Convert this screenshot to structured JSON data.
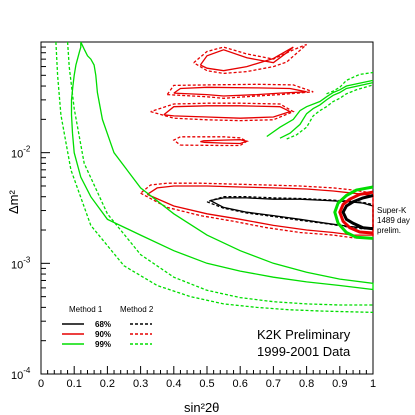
{
  "chart_data": {
    "type": "contour",
    "xlabel": "sin²2θ",
    "ylabel": "Δm²",
    "xlim": [
      0,
      1
    ],
    "ylim": [
      0.0001,
      0.1
    ],
    "y_scale": "log",
    "x_ticks": [
      "0",
      "0.1",
      "0.2",
      "0.3",
      "0.4",
      "0.5",
      "0.6",
      "0.7",
      "0.8",
      "0.9",
      "1"
    ],
    "y_ticks": [
      {
        "value": 0.0001,
        "base": "10",
        "exp": "-4"
      },
      {
        "value": 0.001,
        "base": "10",
        "exp": "-3"
      },
      {
        "value": 0.01,
        "base": "10",
        "exp": "-2"
      }
    ],
    "legend": {
      "method1_label": "Method 1",
      "method2_label": "Method 2",
      "levels": [
        {
          "label": "68%",
          "color": "#000000"
        },
        {
          "label": "90%",
          "color": "#e60000"
        },
        {
          "label": "99%",
          "color": "#00dd00"
        }
      ]
    },
    "annotation_lines": [
      "K2K Preliminary",
      "1999-2001 Data"
    ],
    "superk_lines": [
      "Super-K",
      "1489 day",
      "prelim."
    ],
    "colors": {
      "c68": "#000000",
      "c90": "#e60000",
      "c99": "#00dd00"
    },
    "series": [
      {
        "level": "68%",
        "method": 1,
        "x": [
          0.51,
          0.55,
          0.62,
          0.7,
          0.78,
          0.86,
          0.93,
          0.97,
          1.0,
          1.0,
          0.97,
          0.93,
          0.86,
          0.78,
          0.7,
          0.62,
          0.55,
          0.51
        ],
        "y": [
          0.0037,
          0.0032,
          0.0029,
          0.0027,
          0.0025,
          0.0023,
          0.00215,
          0.0021,
          0.0021,
          0.0033,
          0.0035,
          0.0036,
          0.0037,
          0.0038,
          0.0038,
          0.0039,
          0.0039,
          0.0037
        ]
      },
      {
        "level": "68%",
        "method": 2,
        "x": [
          0.5,
          0.55,
          0.62,
          0.7,
          0.78,
          0.86,
          0.93,
          0.97,
          1.0,
          1.0,
          0.97,
          0.93,
          0.86,
          0.78,
          0.7,
          0.62,
          0.55,
          0.5
        ],
        "y": [
          0.0036,
          0.00315,
          0.00285,
          0.00265,
          0.00245,
          0.00228,
          0.00212,
          0.00205,
          0.00205,
          0.0034,
          0.00355,
          0.00365,
          0.00375,
          0.00385,
          0.0039,
          0.004,
          0.004,
          0.0036
        ]
      },
      {
        "level": "90%",
        "method": 1,
        "x": [
          0.32,
          0.4,
          0.5,
          0.6,
          0.7,
          0.8,
          0.88,
          0.94,
          1.0,
          1.0,
          0.94,
          0.88,
          0.8,
          0.7,
          0.6,
          0.5,
          0.4,
          0.35,
          0.32
        ],
        "y": [
          0.0042,
          0.0033,
          0.0028,
          0.0025,
          0.0022,
          0.002,
          0.0019,
          0.0018,
          0.0018,
          0.0041,
          0.0043,
          0.0045,
          0.0047,
          0.0048,
          0.0049,
          0.005,
          0.005,
          0.0048,
          0.0042
        ]
      },
      {
        "level": "90%",
        "method": 2,
        "x": [
          0.3,
          0.38,
          0.48,
          0.58,
          0.68,
          0.78,
          0.88,
          0.94,
          1.0,
          1.0,
          0.94,
          0.88,
          0.78,
          0.68,
          0.58,
          0.48,
          0.38,
          0.33,
          0.3
        ],
        "y": [
          0.0043,
          0.0032,
          0.0027,
          0.0024,
          0.0021,
          0.0019,
          0.0018,
          0.0017,
          0.0017,
          0.0043,
          0.0046,
          0.0048,
          0.005,
          0.0051,
          0.0052,
          0.0053,
          0.0053,
          0.0051,
          0.0043
        ]
      },
      {
        "level": "90%",
        "method": 1,
        "x": [
          0.49,
          0.55,
          0.6,
          0.62,
          0.6,
          0.55,
          0.49,
          0.48,
          0.49
        ],
        "y": [
          0.0124,
          0.0122,
          0.0121,
          0.0127,
          0.0131,
          0.013,
          0.0128,
          0.0126,
          0.0124
        ]
      },
      {
        "level": "90%",
        "method": 2,
        "x": [
          0.42,
          0.55,
          0.6,
          0.62,
          0.6,
          0.55,
          0.42,
          0.4,
          0.42
        ],
        "y": [
          0.0117,
          0.0116,
          0.0116,
          0.0127,
          0.0136,
          0.0139,
          0.0139,
          0.013,
          0.0117
        ]
      },
      {
        "level": "90%",
        "method": 1,
        "x": [
          0.37,
          0.4,
          0.5,
          0.6,
          0.7,
          0.75,
          0.72,
          0.6,
          0.5,
          0.4,
          0.37
        ],
        "y": [
          0.022,
          0.0215,
          0.021,
          0.0205,
          0.021,
          0.0235,
          0.026,
          0.0265,
          0.0265,
          0.026,
          0.022
        ]
      },
      {
        "level": "90%",
        "method": 2,
        "x": [
          0.33,
          0.4,
          0.5,
          0.6,
          0.7,
          0.76,
          0.72,
          0.6,
          0.5,
          0.4,
          0.33
        ],
        "y": [
          0.0235,
          0.0205,
          0.0198,
          0.0195,
          0.0198,
          0.0235,
          0.0275,
          0.028,
          0.028,
          0.0275,
          0.0235
        ]
      },
      {
        "level": "90%",
        "method": 1,
        "x": [
          0.4,
          0.5,
          0.55,
          0.65,
          0.72,
          0.8,
          0.75,
          0.65,
          0.5,
          0.42,
          0.4
        ],
        "y": [
          0.0345,
          0.0335,
          0.0325,
          0.0335,
          0.0345,
          0.0355,
          0.038,
          0.0385,
          0.039,
          0.038,
          0.0345
        ]
      },
      {
        "level": "90%",
        "method": 2,
        "x": [
          0.38,
          0.5,
          0.55,
          0.65,
          0.72,
          0.82,
          0.76,
          0.65,
          0.5,
          0.4,
          0.38
        ],
        "y": [
          0.0335,
          0.032,
          0.031,
          0.0325,
          0.0335,
          0.0355,
          0.041,
          0.0415,
          0.041,
          0.0405,
          0.0335
        ]
      },
      {
        "level": "90%",
        "method": 1,
        "x": [
          0.48,
          0.5,
          0.55,
          0.62,
          0.7,
          0.74,
          0.76,
          0.7,
          0.62,
          0.55,
          0.5,
          0.48
        ],
        "y": [
          0.062,
          0.075,
          0.085,
          0.072,
          0.065,
          0.08,
          0.09,
          0.071,
          0.06,
          0.055,
          0.058,
          0.062
        ]
      },
      {
        "level": "90%",
        "method": 2,
        "x": [
          0.46,
          0.5,
          0.55,
          0.62,
          0.7,
          0.76,
          0.8,
          0.74,
          0.7,
          0.62,
          0.55,
          0.5,
          0.46
        ],
        "y": [
          0.065,
          0.082,
          0.09,
          0.078,
          0.07,
          0.085,
          0.095,
          0.066,
          0.06,
          0.054,
          0.052,
          0.055,
          0.065
        ]
      },
      {
        "level": "99%",
        "method": 1,
        "x": [
          0.12,
          0.13,
          0.14,
          0.15,
          0.16,
          0.165,
          0.17,
          0.185,
          0.22,
          0.3,
          0.4,
          0.5,
          0.6,
          0.7,
          0.8,
          0.9,
          1.0,
          1.0,
          0.9,
          0.8,
          0.7,
          0.6,
          0.5,
          0.4,
          0.3,
          0.2,
          0.15,
          0.12,
          0.1,
          0.095,
          0.092,
          0.092,
          0.096,
          0.1,
          0.105,
          0.11,
          0.115,
          0.12,
          0.12
        ],
        "y": [
          0.1,
          0.086,
          0.075,
          0.07,
          0.062,
          0.05,
          0.035,
          0.02,
          0.01,
          0.0048,
          0.0028,
          0.0018,
          0.0013,
          0.001,
          0.00083,
          0.00072,
          0.00066,
          0.00058,
          0.00063,
          0.00068,
          0.00075,
          0.00085,
          0.001,
          0.0013,
          0.0018,
          0.0025,
          0.004,
          0.006,
          0.01,
          0.015,
          0.022,
          0.03,
          0.04,
          0.05,
          0.062,
          0.07,
          0.08,
          0.09,
          0.1
        ]
      },
      {
        "level": "99%",
        "method": 2,
        "x": [
          0.08,
          0.085,
          0.1,
          0.13,
          0.2,
          0.3,
          0.4,
          0.5,
          0.6,
          0.7,
          0.8,
          0.9,
          1.0
        ],
        "y": [
          0.1,
          0.06,
          0.025,
          0.008,
          0.0028,
          0.0012,
          0.00075,
          0.00057,
          0.00049,
          0.00045,
          0.00043,
          0.00042,
          0.00042
        ]
      },
      {
        "level": "99%",
        "method": 2,
        "x": [
          0.045,
          0.05,
          0.06,
          0.09,
          0.15,
          0.25,
          0.35,
          0.45,
          0.55,
          0.65,
          0.75,
          0.85,
          1.0
        ],
        "y": [
          0.1,
          0.05,
          0.022,
          0.007,
          0.0022,
          0.00095,
          0.00063,
          0.0005,
          0.00043,
          0.0004,
          0.00038,
          0.00037,
          0.00036
        ]
      },
      {
        "level": "99%",
        "method": 1,
        "x": [
          0.68,
          0.72,
          0.76,
          0.78,
          0.8,
          0.84,
          0.86,
          0.88,
          0.9,
          0.92,
          1.0
        ],
        "y": [
          0.014,
          0.017,
          0.02,
          0.024,
          0.026,
          0.029,
          0.032,
          0.035,
          0.037,
          0.04,
          0.045
        ]
      },
      {
        "level": "99%",
        "method": 1,
        "x": [
          0.72,
          0.75,
          0.78,
          0.8,
          0.82,
          0.84,
          0.86,
          0.88,
          0.9,
          0.92,
          1.0
        ],
        "y": [
          0.0135,
          0.015,
          0.018,
          0.0225,
          0.025,
          0.027,
          0.03,
          0.033,
          0.035,
          0.038,
          0.043
        ]
      },
      {
        "level": "99%",
        "method": 2,
        "x": [
          0.74,
          0.77,
          0.8,
          0.82,
          0.84,
          0.86,
          0.88,
          0.9,
          0.92,
          0.95,
          1.0
        ],
        "y": [
          0.0133,
          0.0145,
          0.017,
          0.0215,
          0.024,
          0.026,
          0.029,
          0.031,
          0.034,
          0.037,
          0.041
        ]
      },
      {
        "level": "99%",
        "method": 2,
        "x": [
          0.86,
          0.88,
          0.9,
          0.92,
          0.94,
          0.96,
          1.0
        ],
        "y": [
          0.034,
          0.036,
          0.039,
          0.045,
          0.048,
          0.051,
          0.053
        ]
      }
    ],
    "superk": [
      {
        "level": "68%",
        "x": [
          1.0,
          0.97,
          0.94,
          0.92,
          0.91,
          0.92,
          0.94,
          0.97,
          1.0
        ],
        "y": [
          0.0041,
          0.0039,
          0.0036,
          0.0033,
          0.0029,
          0.0025,
          0.0023,
          0.0021,
          0.00205
        ]
      },
      {
        "level": "90%",
        "x": [
          1.0,
          0.96,
          0.93,
          0.91,
          0.9,
          0.91,
          0.93,
          0.96,
          1.0
        ],
        "y": [
          0.0044,
          0.0042,
          0.0038,
          0.0034,
          0.0029,
          0.0024,
          0.0021,
          0.00192,
          0.00188
        ]
      },
      {
        "level": "99%",
        "x": [
          1.0,
          0.95,
          0.92,
          0.895,
          0.885,
          0.895,
          0.92,
          0.95,
          1.0
        ],
        "y": [
          0.0049,
          0.0046,
          0.0041,
          0.0035,
          0.0029,
          0.0023,
          0.0019,
          0.00172,
          0.00168
        ]
      }
    ]
  }
}
